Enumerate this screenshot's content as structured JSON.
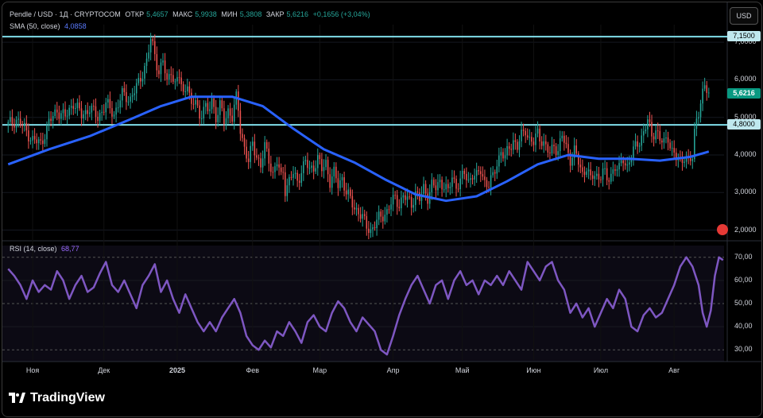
{
  "header": {
    "symbol": "Pendle / USD · 1Д · CRYPTOCOM",
    "open_label": "ОТКР",
    "open": "5,4657",
    "high_label": "МАКС",
    "high": "5,9938",
    "low_label": "МИН",
    "low": "5,3808",
    "close_label": "ЗАКР",
    "close": "5,6216",
    "change": "+0,1656 (+3,04%)",
    "sma_label": "SMA (50, close)",
    "sma_value": "4,0858",
    "rsi_label": "RSI (14, close)",
    "rsi_value": "68,77"
  },
  "currency": "USD",
  "levels": {
    "upper": "7,1500",
    "lower": "4,8000",
    "last_price": "5,6216"
  },
  "price_ticks": [
    "7,0000",
    "6,0000",
    "5,0000",
    "4,0000",
    "3,0000",
    "2,0000"
  ],
  "rsi_ticks": [
    "70,00",
    "60,00",
    "50,00",
    "40,00",
    "30,00"
  ],
  "time_ticks": [
    "Ноя",
    "Дек",
    "2025",
    "Фев",
    "Мар",
    "Апр",
    "Май",
    "Июн",
    "Июл",
    "Авг"
  ],
  "brand": "TradingView",
  "colors": {
    "up": "#26a69a",
    "down": "#ef5350",
    "sma": "#2962ff",
    "rsi": "#7e57c2",
    "level_line": "#80deea",
    "background": "#000000"
  },
  "chart_data": [
    {
      "type": "candlestick",
      "title": "Pendle / USD · 1Д · CRYPTOCOM",
      "y_scale": "linear",
      "ylim": [
        1.8,
        7.3
      ],
      "horizontal_levels": [
        7.15,
        4.8
      ],
      "x_ticks": [
        "Ноя",
        "Дек",
        "2025",
        "Фев",
        "Мар",
        "Апр",
        "Май",
        "Июн",
        "Июл",
        "Авг"
      ],
      "close_path": [
        [
          0,
          4.8
        ],
        [
          4,
          4.95
        ],
        [
          8,
          4.7
        ],
        [
          12,
          4.4
        ],
        [
          16,
          4.3
        ],
        [
          20,
          4.85
        ],
        [
          24,
          5.2
        ],
        [
          28,
          5.0
        ],
        [
          32,
          5.4
        ],
        [
          36,
          5.05
        ],
        [
          40,
          5.25
        ],
        [
          44,
          5.0
        ],
        [
          48,
          5.35
        ],
        [
          52,
          5.1
        ],
        [
          56,
          5.6
        ],
        [
          60,
          5.5
        ],
        [
          64,
          5.9
        ],
        [
          68,
          6.5
        ],
        [
          70,
          7.05
        ],
        [
          72,
          6.7
        ],
        [
          74,
          6.2
        ],
        [
          76,
          6.5
        ],
        [
          78,
          5.9
        ],
        [
          80,
          6.3
        ],
        [
          82,
          5.85
        ],
        [
          84,
          6.1
        ],
        [
          86,
          5.6
        ],
        [
          88,
          6.0
        ],
        [
          90,
          5.2
        ],
        [
          92,
          5.5
        ],
        [
          94,
          5.0
        ],
        [
          96,
          5.3
        ],
        [
          98,
          5.1
        ],
        [
          100,
          5.5
        ],
        [
          102,
          5.0
        ],
        [
          104,
          5.3
        ],
        [
          106,
          4.9
        ],
        [
          108,
          5.2
        ],
        [
          110,
          5.0
        ],
        [
          112,
          5.5
        ],
        [
          113,
          5.2
        ],
        [
          114,
          4.7
        ],
        [
          116,
          4.2
        ],
        [
          118,
          3.8
        ],
        [
          120,
          4.3
        ],
        [
          122,
          4.0
        ],
        [
          124,
          3.7
        ],
        [
          126,
          4.2
        ],
        [
          128,
          3.9
        ],
        [
          130,
          3.5
        ],
        [
          132,
          3.8
        ],
        [
          134,
          3.4
        ],
        [
          135,
          3.6
        ],
        [
          136,
          3.1
        ],
        [
          138,
          3.3
        ],
        [
          140,
          3.5
        ],
        [
          142,
          3.3
        ],
        [
          144,
          3.6
        ],
        [
          146,
          3.8
        ],
        [
          148,
          3.6
        ],
        [
          150,
          3.7
        ],
        [
          152,
          3.9
        ],
        [
          154,
          3.6
        ],
        [
          156,
          3.8
        ],
        [
          158,
          3.3
        ],
        [
          160,
          3.5
        ],
        [
          162,
          3.2
        ],
        [
          164,
          3.4
        ],
        [
          166,
          3.0
        ],
        [
          168,
          2.8
        ],
        [
          170,
          2.6
        ],
        [
          172,
          2.5
        ],
        [
          174,
          2.3
        ],
        [
          176,
          2.1
        ],
        [
          178,
          2.0
        ],
        [
          180,
          2.15
        ],
        [
          182,
          2.3
        ],
        [
          184,
          2.4
        ],
        [
          186,
          2.5
        ],
        [
          188,
          2.7
        ],
        [
          190,
          2.85
        ],
        [
          192,
          2.7
        ],
        [
          194,
          2.9
        ],
        [
          196,
          2.8
        ],
        [
          198,
          2.7
        ],
        [
          200,
          3.0
        ],
        [
          202,
          2.8
        ],
        [
          204,
          3.1
        ],
        [
          206,
          2.9
        ],
        [
          208,
          3.2
        ],
        [
          210,
          3.1
        ],
        [
          212,
          3.3
        ],
        [
          214,
          3.2
        ],
        [
          216,
          3.0
        ],
        [
          218,
          3.4
        ],
        [
          220,
          3.2
        ],
        [
          222,
          3.3
        ],
        [
          224,
          3.5
        ],
        [
          226,
          3.3
        ],
        [
          228,
          3.5
        ],
        [
          230,
          3.4
        ],
        [
          232,
          3.6
        ],
        [
          234,
          3.3
        ],
        [
          236,
          3.2
        ],
        [
          238,
          3.4
        ],
        [
          240,
          3.8
        ],
        [
          242,
          4.1
        ],
        [
          244,
          3.9
        ],
        [
          246,
          4.2
        ],
        [
          248,
          4.4
        ],
        [
          250,
          4.2
        ],
        [
          252,
          4.5
        ],
        [
          254,
          4.7
        ],
        [
          256,
          4.4
        ],
        [
          258,
          4.3
        ],
        [
          260,
          4.6
        ],
        [
          262,
          4.4
        ],
        [
          264,
          4.2
        ],
        [
          266,
          4.0
        ],
        [
          268,
          4.3
        ],
        [
          270,
          4.1
        ],
        [
          272,
          4.5
        ],
        [
          274,
          4.2
        ],
        [
          276,
          3.9
        ],
        [
          278,
          4.1
        ],
        [
          280,
          3.8
        ],
        [
          282,
          3.5
        ],
        [
          284,
          3.7
        ],
        [
          286,
          3.3
        ],
        [
          288,
          3.5
        ],
        [
          290,
          3.4
        ],
        [
          292,
          3.6
        ],
        [
          294,
          3.3
        ],
        [
          296,
          3.5
        ],
        [
          298,
          3.7
        ],
        [
          300,
          3.6
        ],
        [
          302,
          3.9
        ],
        [
          304,
          3.7
        ],
        [
          306,
          4.0
        ],
        [
          308,
          4.2
        ],
        [
          310,
          4.4
        ],
        [
          312,
          4.6
        ],
        [
          314,
          4.9
        ],
        [
          316,
          4.5
        ],
        [
          318,
          4.7
        ],
        [
          320,
          4.4
        ],
        [
          322,
          4.3
        ],
        [
          324,
          4.5
        ],
        [
          326,
          4.1
        ],
        [
          328,
          3.9
        ],
        [
          330,
          3.8
        ],
        [
          332,
          4.0
        ],
        [
          334,
          3.8
        ],
        [
          336,
          3.9
        ],
        [
          337,
          4.6
        ],
        [
          338,
          5.0
        ],
        [
          340,
          5.4
        ],
        [
          342,
          5.8
        ],
        [
          344,
          5.62
        ]
      ],
      "sma": {
        "name": "SMA (50, close)",
        "path": [
          [
            0,
            3.75
          ],
          [
            20,
            4.15
          ],
          [
            40,
            4.5
          ],
          [
            60,
            4.95
          ],
          [
            75,
            5.3
          ],
          [
            90,
            5.55
          ],
          [
            110,
            5.55
          ],
          [
            125,
            5.3
          ],
          [
            140,
            4.7
          ],
          [
            155,
            4.15
          ],
          [
            170,
            3.8
          ],
          [
            185,
            3.35
          ],
          [
            200,
            2.95
          ],
          [
            215,
            2.78
          ],
          [
            230,
            2.9
          ],
          [
            245,
            3.3
          ],
          [
            260,
            3.75
          ],
          [
            275,
            4.0
          ],
          [
            290,
            3.9
          ],
          [
            305,
            3.9
          ],
          [
            320,
            3.85
          ],
          [
            335,
            3.95
          ],
          [
            344,
            4.09
          ]
        ]
      }
    },
    {
      "type": "line",
      "title": "RSI (14, close)",
      "ylim": [
        27,
        73
      ],
      "reference_lines": [
        70,
        30
      ],
      "series": [
        {
          "name": "RSI (14, close)",
          "path": [
            [
              0,
              65
            ],
            [
              3,
              62
            ],
            [
              6,
              58
            ],
            [
              9,
              52
            ],
            [
              12,
              60
            ],
            [
              15,
              55
            ],
            [
              18,
              58
            ],
            [
              21,
              56
            ],
            [
              24,
              64
            ],
            [
              27,
              60
            ],
            [
              30,
              52
            ],
            [
              33,
              58
            ],
            [
              36,
              62
            ],
            [
              39,
              55
            ],
            [
              42,
              57
            ],
            [
              45,
              63
            ],
            [
              48,
              68
            ],
            [
              51,
              58
            ],
            [
              54,
              55
            ],
            [
              57,
              60
            ],
            [
              60,
              54
            ],
            [
              63,
              48
            ],
            [
              66,
              58
            ],
            [
              69,
              62
            ],
            [
              72,
              67
            ],
            [
              75,
              55
            ],
            [
              78,
              60
            ],
            [
              81,
              52
            ],
            [
              84,
              46
            ],
            [
              87,
              54
            ],
            [
              90,
              48
            ],
            [
              93,
              42
            ],
            [
              96,
              38
            ],
            [
              99,
              42
            ],
            [
              102,
              38
            ],
            [
              105,
              44
            ],
            [
              108,
              48
            ],
            [
              111,
              52
            ],
            [
              114,
              46
            ],
            [
              117,
              36
            ],
            [
              120,
              32
            ],
            [
              123,
              30
            ],
            [
              126,
              34
            ],
            [
              129,
              31
            ],
            [
              132,
              38
            ],
            [
              135,
              36
            ],
            [
              138,
              42
            ],
            [
              141,
              38
            ],
            [
              144,
              33
            ],
            [
              147,
              42
            ],
            [
              150,
              45
            ],
            [
              153,
              40
            ],
            [
              156,
              38
            ],
            [
              159,
              46
            ],
            [
              162,
              51
            ],
            [
              165,
              48
            ],
            [
              168,
              42
            ],
            [
              171,
              38
            ],
            [
              174,
              44
            ],
            [
              177,
              41
            ],
            [
              180,
              38
            ],
            [
              183,
              30
            ],
            [
              186,
              28
            ],
            [
              189,
              36
            ],
            [
              192,
              45
            ],
            [
              195,
              52
            ],
            [
              198,
              58
            ],
            [
              201,
              62
            ],
            [
              204,
              56
            ],
            [
              207,
              50
            ],
            [
              210,
              58
            ],
            [
              213,
              60
            ],
            [
              216,
              52
            ],
            [
              219,
              60
            ],
            [
              222,
              64
            ],
            [
              225,
              58
            ],
            [
              228,
              60
            ],
            [
              231,
              54
            ],
            [
              234,
              60
            ],
            [
              237,
              58
            ],
            [
              240,
              62
            ],
            [
              243,
              58
            ],
            [
              246,
              64
            ],
            [
              249,
              60
            ],
            [
              252,
              56
            ],
            [
              255,
              68
            ],
            [
              258,
              64
            ],
            [
              261,
              60
            ],
            [
              264,
              66
            ],
            [
              267,
              68
            ],
            [
              270,
              60
            ],
            [
              273,
              56
            ],
            [
              276,
              46
            ],
            [
              279,
              50
            ],
            [
              282,
              44
            ],
            [
              285,
              48
            ],
            [
              288,
              40
            ],
            [
              291,
              46
            ],
            [
              294,
              52
            ],
            [
              297,
              48
            ],
            [
              300,
              56
            ],
            [
              303,
              52
            ],
            [
              306,
              40
            ],
            [
              309,
              38
            ],
            [
              312,
              45
            ],
            [
              315,
              48
            ],
            [
              318,
              44
            ],
            [
              321,
              46
            ],
            [
              324,
              52
            ],
            [
              327,
              58
            ],
            [
              330,
              66
            ],
            [
              333,
              70
            ],
            [
              336,
              66
            ],
            [
              339,
              58
            ],
            [
              341,
              46
            ],
            [
              343,
              40
            ],
            [
              345,
              47
            ],
            [
              347,
              62
            ],
            [
              349,
              70
            ],
            [
              351,
              68.77
            ]
          ]
        }
      ],
      "ticks": [
        "70,00",
        "60,00",
        "50,00",
        "40,00",
        "30,00"
      ]
    }
  ]
}
